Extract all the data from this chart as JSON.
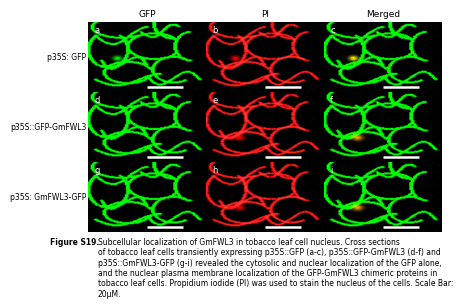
{
  "title": "Figure S19.",
  "caption_bold": "Figure S19.",
  "caption_normal": " Subcellular localization of GmFWL3 in tobacco leaf cell nucleus. Cross sections of tobacco leaf cells transiently expressing p35S::GFP (a-c), p35S::GFP-GmFWL3 (d-f) and p35S::GmFWL3-GFP (g-i) revealed the cytosolic and nuclear localization of the GFP alone, and the nuclear plasma membrane localization of the GFP-GmFWL3 chimeric proteins in tobacco leaf cells. Propidium iodide (PI) was used to stain the nucleus of the cells. Scale Bar: 20μM.",
  "col_labels": [
    "GFP",
    "PI",
    "Merged"
  ],
  "row_labels": [
    "p35S: GFP",
    "p35S::GFP-GmFWL3",
    "p35S: GmFWL3-GFP"
  ],
  "panel_labels": [
    "a",
    "b",
    "c",
    "d",
    "e",
    "f",
    "g",
    "h",
    "i"
  ],
  "bg_color": "#000000",
  "figure_bg": "#ffffff",
  "col_label_fontsize": 6.5,
  "row_label_fontsize": 5.5,
  "caption_fontsize": 5.5,
  "panel_label_color": "#ffffff",
  "panel_label_fontsize": 6
}
